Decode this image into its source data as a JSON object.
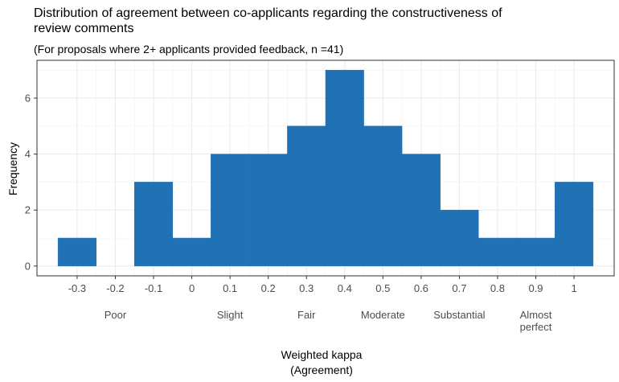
{
  "chart_data": {
    "type": "bar",
    "title_lines": [
      "Distribution of agreement between co-applicants regarding the constructiveness of",
      "review comments"
    ],
    "subtitle": "(For proposals where 2+ applicants provided feedback, n =41)",
    "xlabel_lines": [
      "Weighted kappa",
      "(Agreement)"
    ],
    "ylabel": "Frequency",
    "bar_color": "#2171b5",
    "bin_width": 0.1,
    "bins": [
      {
        "center": -0.3,
        "count": 1
      },
      {
        "center": -0.2,
        "count": 0
      },
      {
        "center": -0.1,
        "count": 3
      },
      {
        "center": 0.0,
        "count": 1
      },
      {
        "center": 0.1,
        "count": 4
      },
      {
        "center": 0.2,
        "count": 4
      },
      {
        "center": 0.3,
        "count": 5
      },
      {
        "center": 0.4,
        "count": 7
      },
      {
        "center": 0.5,
        "count": 5
      },
      {
        "center": 0.6,
        "count": 4
      },
      {
        "center": 0.7,
        "count": 2
      },
      {
        "center": 0.8,
        "count": 1
      },
      {
        "center": 0.9,
        "count": 1
      },
      {
        "center": 1.0,
        "count": 3
      }
    ],
    "xlim": [
      -0.405,
      1.105
    ],
    "ylim": [
      -0.35,
      7.35
    ],
    "x_ticks": [
      -0.3,
      -0.2,
      -0.1,
      0,
      0.1,
      0.2,
      0.3,
      0.4,
      0.5,
      0.6,
      0.7,
      0.8,
      0.9,
      1
    ],
    "x_tick_labels": [
      "-0.3",
      "-0.2",
      "-0.1",
      "0",
      "0.1",
      "0.2",
      "0.3",
      "0.4",
      "0.5",
      "0.6",
      "0.7",
      "0.8",
      "0.9",
      "1"
    ],
    "y_ticks": [
      0,
      2,
      4,
      6
    ],
    "y_tick_labels": [
      "0",
      "2",
      "4",
      "6"
    ],
    "agreement_bands": [
      {
        "center": -0.2,
        "lines": [
          "Poor"
        ]
      },
      {
        "center": 0.1,
        "lines": [
          "Slight"
        ]
      },
      {
        "center": 0.3,
        "lines": [
          "Fair"
        ]
      },
      {
        "center": 0.5,
        "lines": [
          "Moderate"
        ]
      },
      {
        "center": 0.7,
        "lines": [
          "Substantial"
        ]
      },
      {
        "center": 0.9,
        "lines": [
          "Almost",
          "perfect"
        ]
      }
    ],
    "grid": true
  }
}
